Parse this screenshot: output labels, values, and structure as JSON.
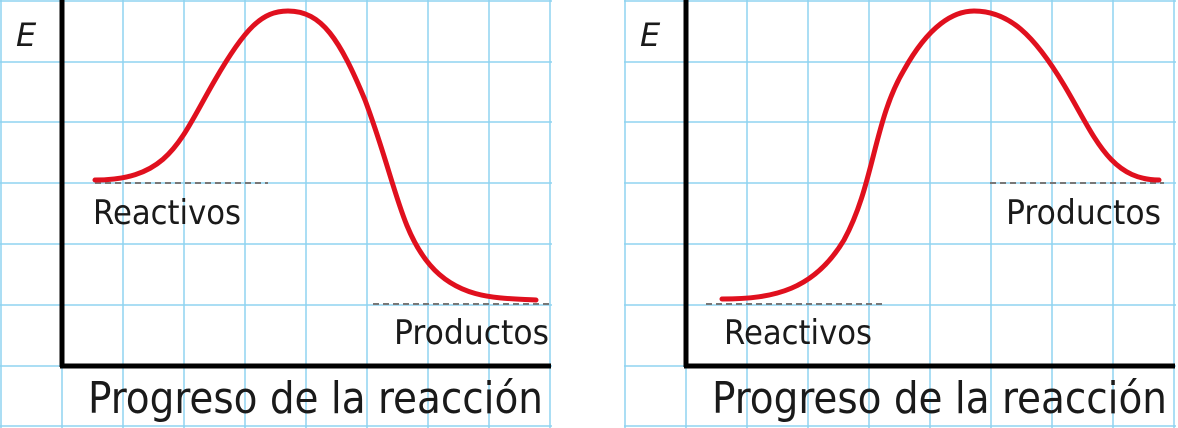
{
  "colors": {
    "grid": "#8fd3f0",
    "axis": "#000000",
    "curve": "#e0101e",
    "dashed": "#777777"
  },
  "diagrams": [
    {
      "y_axis_label": "E",
      "x_axis_label": "Progreso de la reacción",
      "reactants_label": "Reactivos",
      "products_label": "Productos",
      "reactants_level": "high",
      "products_level": "low"
    },
    {
      "y_axis_label": "E",
      "x_axis_label": "Progreso de la reacción",
      "reactants_label": "Reactivos",
      "products_label": "Productos",
      "reactants_level": "low",
      "products_level": "high"
    }
  ]
}
